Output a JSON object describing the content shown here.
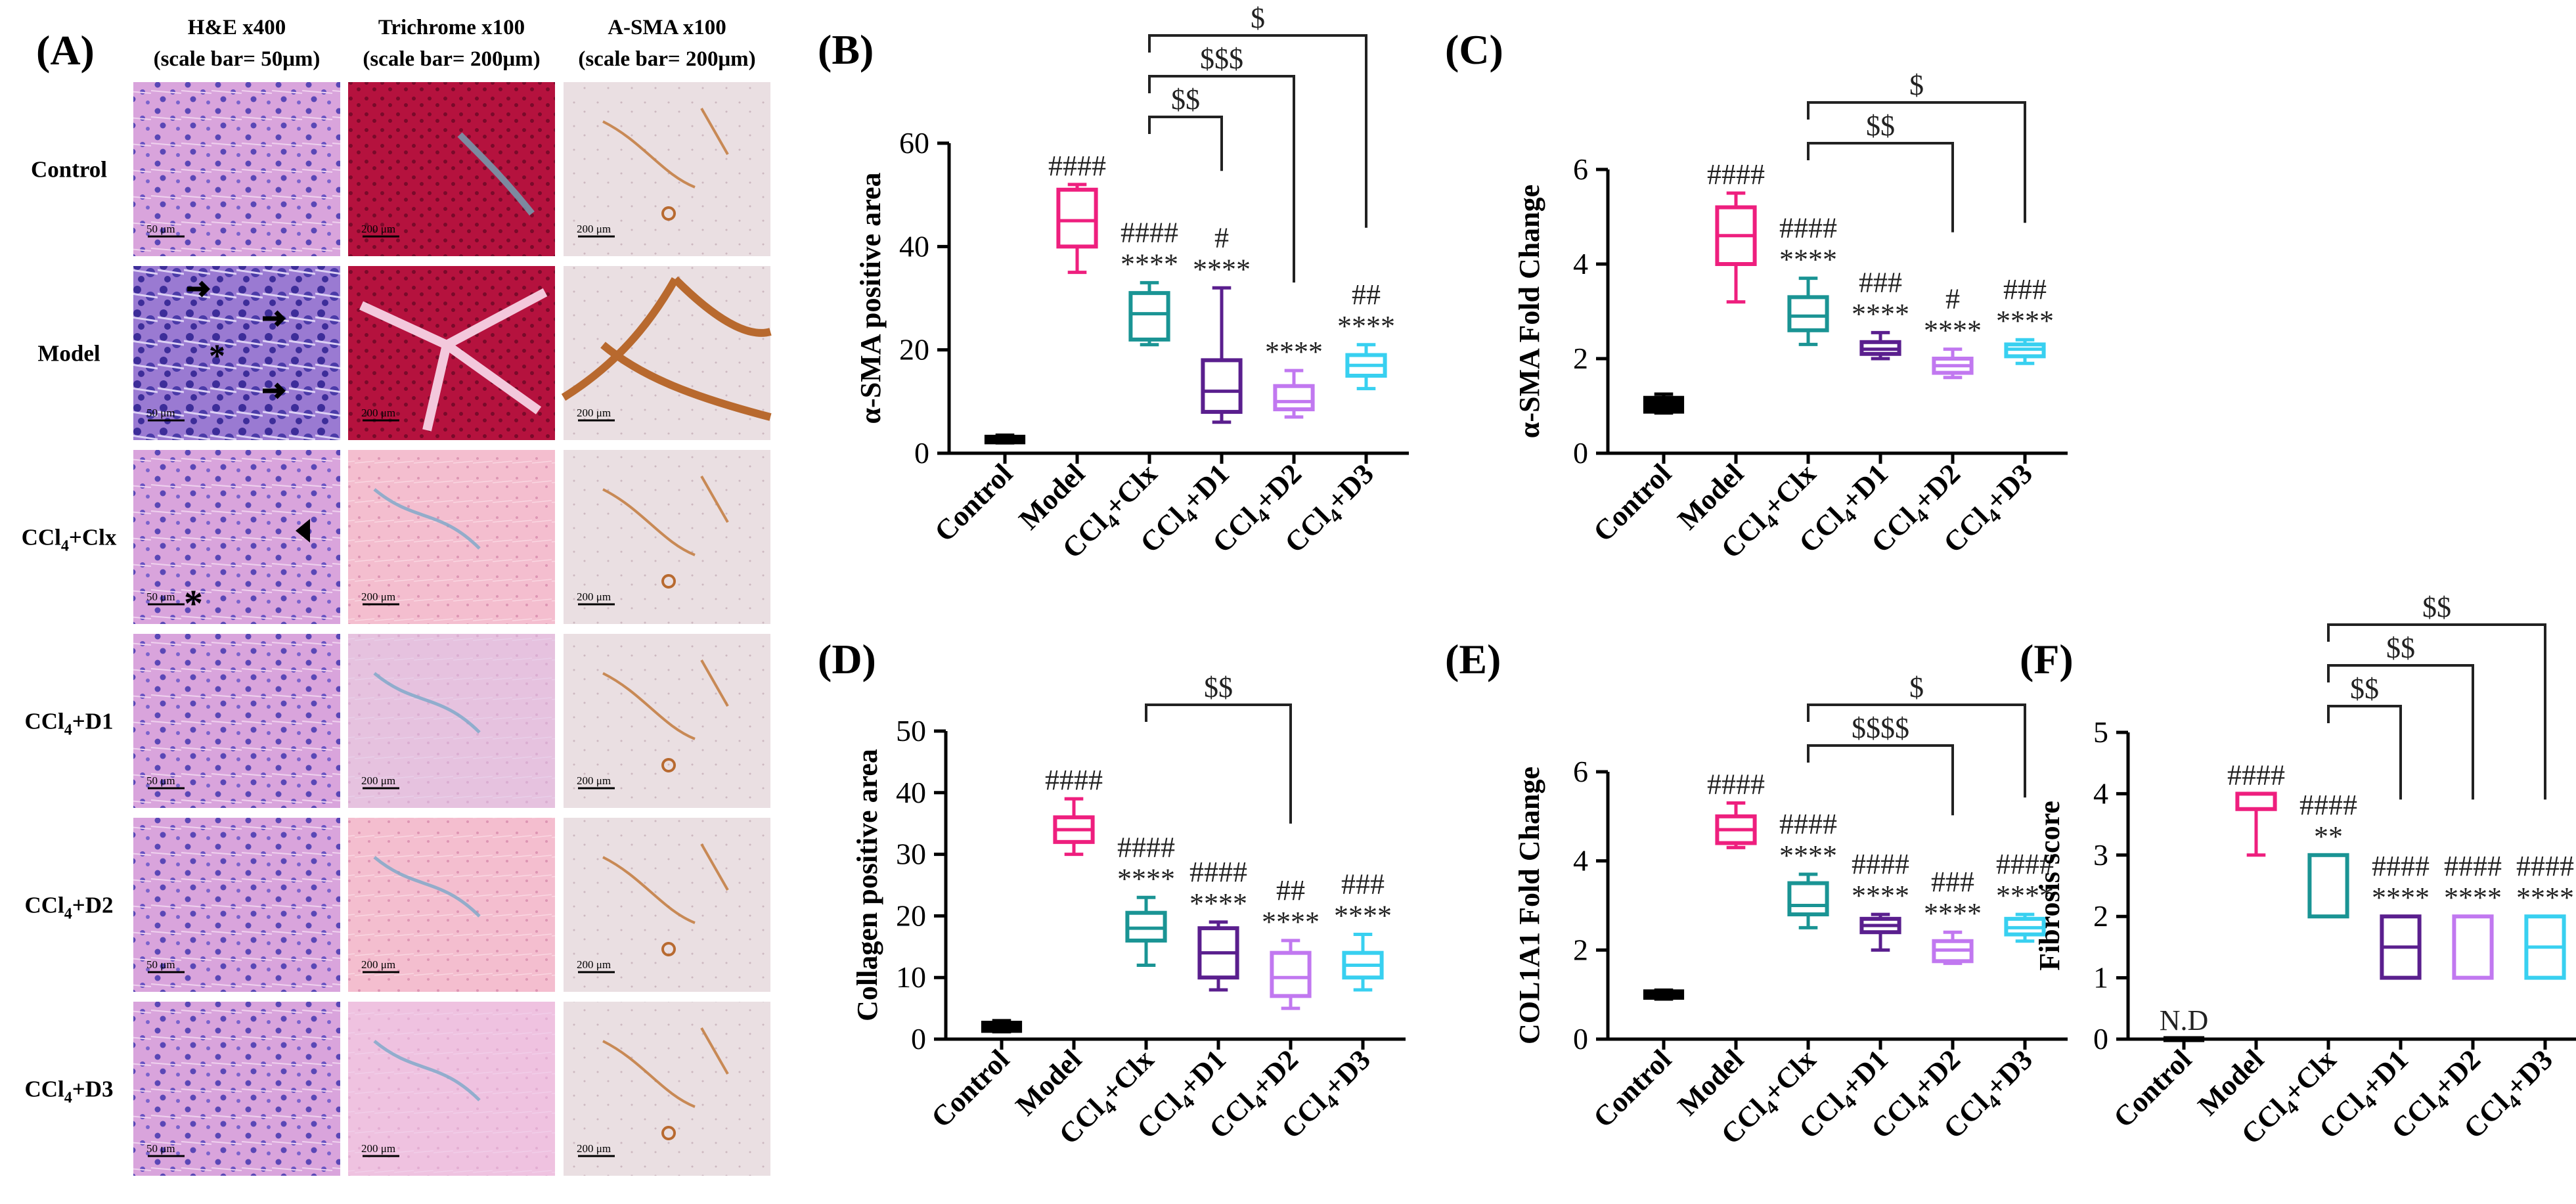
{
  "colors": {
    "control": "#000000",
    "model": "#ee1f7e",
    "clx": "#1a9494",
    "d1": "#5a1f8e",
    "d2": "#c178f0",
    "d3": "#38d0f0"
  },
  "panel_a": {
    "label": "(A)",
    "column_headers": [
      {
        "line1": "H&E x400",
        "line2": "(scale bar= 50μm)"
      },
      {
        "line1": "Trichrome x100",
        "line2": "(scale bar= 200μm)"
      },
      {
        "line1": "A-SMA x100",
        "line2": "(scale bar= 200μm)"
      }
    ],
    "row_labels": [
      {
        "main": "Control",
        "sub": "",
        "tail": ""
      },
      {
        "main": "Model",
        "sub": "",
        "tail": ""
      },
      {
        "main": "CCl",
        "sub": "4",
        "tail": "+Clx"
      },
      {
        "main": "CCl",
        "sub": "4",
        "tail": "+D1"
      },
      {
        "main": "CCl",
        "sub": "4",
        "tail": "+D2"
      },
      {
        "main": "CCl",
        "sub": "4",
        "tail": "+D3"
      }
    ],
    "scale_texts": {
      "he": "50 μm",
      "tri": "200 μm",
      "sma": "200 μm"
    }
  },
  "chart_data": [
    {
      "id": "B",
      "label": "(B)",
      "type": "box",
      "ylabel": "α-SMA positive area",
      "ylim": [
        0,
        60
      ],
      "ticks": [
        0,
        20,
        40,
        60
      ],
      "categories": [
        "Control",
        "Model",
        "CCl4+Clx",
        "CCl4+D1",
        "CCl4+D2",
        "CCl4+D3"
      ],
      "boxes": [
        {
          "min": 2,
          "q1": 2.3,
          "median": 2.6,
          "q3": 3.0,
          "max": 3.5
        },
        {
          "min": 35,
          "q1": 40,
          "median": 45,
          "q3": 51,
          "max": 52
        },
        {
          "min": 21,
          "q1": 22,
          "median": 27,
          "q3": 31,
          "max": 33
        },
        {
          "min": 6,
          "q1": 8,
          "median": 12,
          "q3": 18,
          "max": 32
        },
        {
          "min": 7,
          "q1": 8.5,
          "median": 10,
          "q3": 13,
          "max": 16
        },
        {
          "min": 12.5,
          "q1": 15,
          "median": 17,
          "q3": 19,
          "max": 21
        }
      ],
      "annotations": [
        {
          "group": 1,
          "lines": [
            "####"
          ]
        },
        {
          "group": 2,
          "lines": [
            "####",
            "****"
          ]
        },
        {
          "group": 3,
          "lines": [
            "#",
            "****"
          ]
        },
        {
          "group": 4,
          "lines": [
            "****"
          ]
        },
        {
          "group": 5,
          "lines": [
            "##",
            "****"
          ]
        }
      ],
      "brackets": [
        {
          "from": 2,
          "to": 3,
          "label": "$$"
        },
        {
          "from": 2,
          "to": 4,
          "label": "$$$"
        },
        {
          "from": 2,
          "to": 5,
          "label": "$"
        }
      ]
    },
    {
      "id": "C",
      "label": "(C)",
      "type": "box",
      "ylabel": "α-SMA Fold Change",
      "ylim": [
        0,
        6
      ],
      "ticks": [
        0,
        2,
        4,
        6
      ],
      "categories": [
        "Control",
        "Model",
        "CCl4+Clx",
        "CCl4+D1",
        "CCl4+D2",
        "CCl4+D3"
      ],
      "boxes": [
        {
          "min": 0.85,
          "q1": 0.9,
          "median": 1.0,
          "q3": 1.15,
          "max": 1.25
        },
        {
          "min": 3.2,
          "q1": 4.0,
          "median": 4.6,
          "q3": 5.2,
          "max": 5.5
        },
        {
          "min": 2.3,
          "q1": 2.6,
          "median": 2.9,
          "q3": 3.3,
          "max": 3.7
        },
        {
          "min": 2.0,
          "q1": 2.1,
          "median": 2.2,
          "q3": 2.35,
          "max": 2.55
        },
        {
          "min": 1.6,
          "q1": 1.7,
          "median": 1.85,
          "q3": 2.0,
          "max": 2.2
        },
        {
          "min": 1.9,
          "q1": 2.05,
          "median": 2.2,
          "q3": 2.3,
          "max": 2.4
        }
      ],
      "annotations": [
        {
          "group": 1,
          "lines": [
            "####"
          ]
        },
        {
          "group": 2,
          "lines": [
            "####",
            "****"
          ]
        },
        {
          "group": 3,
          "lines": [
            "###",
            "****"
          ]
        },
        {
          "group": 4,
          "lines": [
            "#",
            "****"
          ]
        },
        {
          "group": 5,
          "lines": [
            "###",
            "****"
          ]
        }
      ],
      "brackets": [
        {
          "from": 2,
          "to": 4,
          "label": "$$"
        },
        {
          "from": 2,
          "to": 5,
          "label": "$"
        }
      ]
    },
    {
      "id": "D",
      "label": "(D)",
      "type": "box",
      "ylabel": "Collagen positive area",
      "ylim": [
        0,
        50
      ],
      "ticks": [
        0,
        10,
        20,
        30,
        40,
        50
      ],
      "categories": [
        "Control",
        "Model",
        "CCl4+Clx",
        "CCl4+D1",
        "CCl4+D2",
        "CCl4+D3"
      ],
      "boxes": [
        {
          "min": 1.2,
          "q1": 1.5,
          "median": 2.0,
          "q3": 2.5,
          "max": 3.0
        },
        {
          "min": 30,
          "q1": 32,
          "median": 34,
          "q3": 36,
          "max": 39
        },
        {
          "min": 12,
          "q1": 16,
          "median": 18,
          "q3": 20.5,
          "max": 23
        },
        {
          "min": 8,
          "q1": 10,
          "median": 14,
          "q3": 18,
          "max": 19
        },
        {
          "min": 5,
          "q1": 7,
          "median": 10,
          "q3": 14,
          "max": 16
        },
        {
          "min": 8,
          "q1": 10,
          "median": 12,
          "q3": 14,
          "max": 17
        }
      ],
      "annotations": [
        {
          "group": 1,
          "lines": [
            "####"
          ]
        },
        {
          "group": 2,
          "lines": [
            "####",
            "****"
          ]
        },
        {
          "group": 3,
          "lines": [
            "####",
            "****"
          ]
        },
        {
          "group": 4,
          "lines": [
            "##",
            "****"
          ]
        },
        {
          "group": 5,
          "lines": [
            "###",
            "****"
          ]
        }
      ],
      "brackets": [
        {
          "from": 2,
          "to": 4,
          "label": "$$"
        }
      ]
    },
    {
      "id": "E",
      "label": "(E)",
      "type": "box",
      "ylabel": "COL1A1 Fold Change",
      "ylim": [
        0,
        6
      ],
      "ticks": [
        0,
        2,
        4,
        6
      ],
      "categories": [
        "Control",
        "Model",
        "CCl4+Clx",
        "CCl4+D1",
        "CCl4+D2",
        "CCl4+D3"
      ],
      "boxes": [
        {
          "min": 0.9,
          "q1": 0.95,
          "median": 1.0,
          "q3": 1.05,
          "max": 1.1
        },
        {
          "min": 4.3,
          "q1": 4.4,
          "median": 4.7,
          "q3": 5.0,
          "max": 5.3
        },
        {
          "min": 2.5,
          "q1": 2.8,
          "median": 3.0,
          "q3": 3.5,
          "max": 3.7
        },
        {
          "min": 2.0,
          "q1": 2.4,
          "median": 2.55,
          "q3": 2.7,
          "max": 2.8
        },
        {
          "min": 1.7,
          "q1": 1.75,
          "median": 2.0,
          "q3": 2.2,
          "max": 2.4
        },
        {
          "min": 2.2,
          "q1": 2.35,
          "median": 2.5,
          "q3": 2.7,
          "max": 2.8
        }
      ],
      "annotations": [
        {
          "group": 1,
          "lines": [
            "####"
          ]
        },
        {
          "group": 2,
          "lines": [
            "####",
            "****"
          ]
        },
        {
          "group": 3,
          "lines": [
            "####",
            "****"
          ]
        },
        {
          "group": 4,
          "lines": [
            "###",
            "****"
          ]
        },
        {
          "group": 5,
          "lines": [
            "####",
            "****"
          ]
        }
      ],
      "brackets": [
        {
          "from": 2,
          "to": 4,
          "label": "$$$$"
        },
        {
          "from": 2,
          "to": 5,
          "label": "$"
        }
      ]
    },
    {
      "id": "F",
      "label": "(F)",
      "type": "box",
      "ylabel": "Fibrosis score",
      "ylim": [
        0,
        5
      ],
      "ticks": [
        0,
        1,
        2,
        3,
        4,
        5
      ],
      "categories": [
        "Control",
        "Model",
        "CCl4+Clx",
        "CCl4+D1",
        "CCl4+D2",
        "CCl4+D3"
      ],
      "boxes": [
        {
          "min": 0,
          "q1": 0,
          "median": 0,
          "q3": 0,
          "max": 0
        },
        {
          "min": 3,
          "q1": 3.75,
          "median": 4,
          "q3": 4,
          "max": 4
        },
        {
          "min": 2,
          "q1": 2,
          "median": 2,
          "q3": 3,
          "max": 3
        },
        {
          "min": 1,
          "q1": 1,
          "median": 1.5,
          "q3": 2,
          "max": 2
        },
        {
          "min": 1,
          "q1": 1,
          "median": 2,
          "q3": 2,
          "max": 2
        },
        {
          "min": 1,
          "q1": 1,
          "median": 1.5,
          "q3": 2,
          "max": 2
        }
      ],
      "annotations": [
        {
          "group": 0,
          "lines": [
            "N.D"
          ]
        },
        {
          "group": 1,
          "lines": [
            "####"
          ]
        },
        {
          "group": 2,
          "lines": [
            "####",
            "**"
          ]
        },
        {
          "group": 3,
          "lines": [
            "####",
            "****"
          ]
        },
        {
          "group": 4,
          "lines": [
            "####",
            "****"
          ]
        },
        {
          "group": 5,
          "lines": [
            "####",
            "****"
          ]
        }
      ],
      "brackets": [
        {
          "from": 2,
          "to": 3,
          "label": "$$"
        },
        {
          "from": 2,
          "to": 4,
          "label": "$$"
        },
        {
          "from": 2,
          "to": 5,
          "label": "$$"
        }
      ]
    }
  ]
}
